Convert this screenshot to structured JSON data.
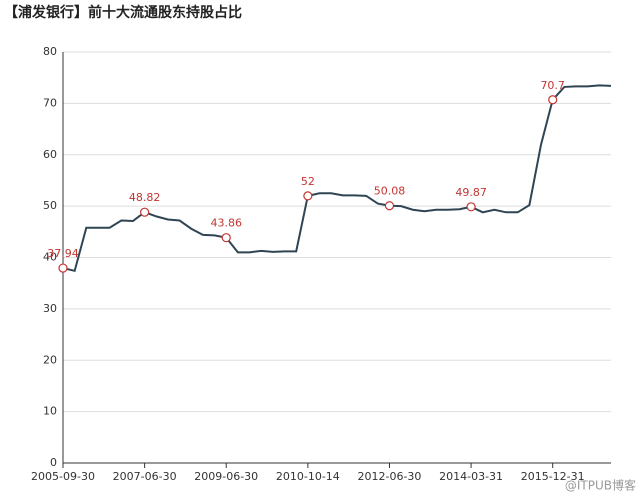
{
  "chart_data": {
    "type": "line",
    "title": "【浦发银行】前十大流通股东持股占比",
    "watermark": "@ITPUB博客",
    "categories": [
      "2005-09-30",
      null,
      null,
      null,
      null,
      null,
      null,
      "2007-06-30",
      null,
      null,
      null,
      null,
      null,
      null,
      "2009-06-30",
      null,
      null,
      null,
      null,
      null,
      null,
      "2010-10-14",
      null,
      null,
      null,
      null,
      null,
      null,
      "2012-06-30",
      null,
      null,
      null,
      null,
      null,
      null,
      "2014-03-31",
      null,
      null,
      null,
      null,
      null,
      null,
      "2015-12-31",
      null,
      null,
      null,
      null,
      null
    ],
    "series": [
      {
        "color": "#2f4554",
        "marker_color": "#c23531",
        "values": [
          37.94,
          37.4,
          45.8,
          45.8,
          45.8,
          47.2,
          47.1,
          48.82,
          48.0,
          47.4,
          47.2,
          45.6,
          44.4,
          44.3,
          43.86,
          41.0,
          41.0,
          41.3,
          41.1,
          41.2,
          41.2,
          52,
          52.5,
          52.5,
          52.1,
          52.1,
          52.0,
          50.5,
          50.08,
          50.0,
          49.3,
          49.0,
          49.3,
          49.3,
          49.4,
          49.87,
          48.8,
          49.3,
          48.8,
          48.8,
          50.2,
          62.0,
          70.7,
          73.2,
          73.3,
          73.3,
          73.5,
          73.4
        ],
        "marked": [
          0,
          7,
          14,
          21,
          28,
          35,
          42
        ]
      }
    ],
    "ylim": [
      0,
      80
    ],
    "yticks": [
      0,
      10,
      20,
      30,
      40,
      50,
      60,
      70,
      80
    ],
    "grid": true
  }
}
